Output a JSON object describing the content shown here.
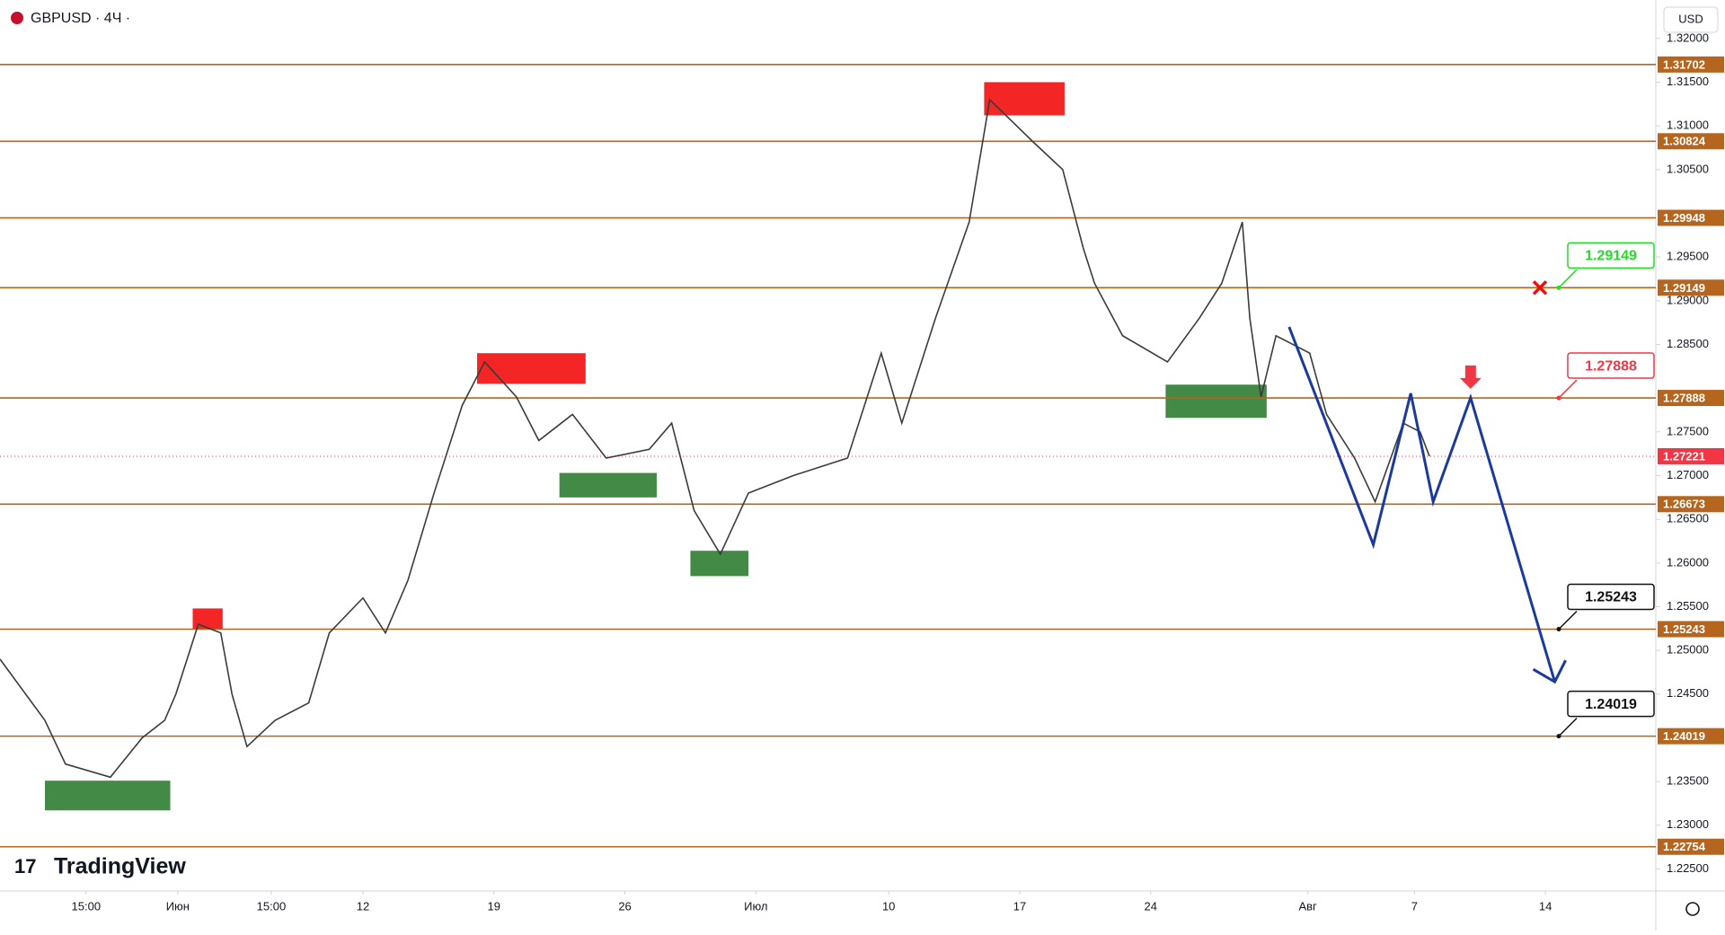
{
  "header": {
    "symbol": "GBPUSD · 4Ч ·",
    "currency": "USD",
    "brand": "TradingView"
  },
  "chart_data": {
    "type": "line",
    "color": "#3b3b3b",
    "xlim": [
      0,
      88.5
    ],
    "ylim": [
      1.22248,
      1.3244
    ],
    "xticks": [
      {
        "value": 4.6,
        "label": "15:00"
      },
      {
        "value": 9.5,
        "label": "Июн"
      },
      {
        "value": 14.5,
        "label": "15:00"
      },
      {
        "value": 19.4,
        "label": "12"
      },
      {
        "value": 26.4,
        "label": "19"
      },
      {
        "value": 33.4,
        "label": "26"
      },
      {
        "value": 40.4,
        "label": "Июл"
      },
      {
        "value": 47.5,
        "label": "10"
      },
      {
        "value": 54.5,
        "label": "17"
      },
      {
        "value": 61.5,
        "label": "24"
      },
      {
        "value": 69.9,
        "label": "Авг"
      },
      {
        "value": 75.6,
        "label": "7"
      },
      {
        "value": 82.6,
        "label": "14"
      }
    ],
    "yticks": [
      {
        "value": 1.32,
        "label": "1.32000"
      },
      {
        "value": 1.315,
        "label": "1.31500"
      },
      {
        "value": 1.31,
        "label": "1.31000"
      },
      {
        "value": 1.305,
        "label": "1.30500"
      },
      {
        "value": 1.295,
        "label": "1.29500"
      },
      {
        "value": 1.29,
        "label": "1.29000"
      },
      {
        "value": 1.285,
        "label": "1.28500"
      },
      {
        "value": 1.275,
        "label": "1.27500"
      },
      {
        "value": 1.27,
        "label": "1.27000"
      },
      {
        "value": 1.265,
        "label": "1.26500"
      },
      {
        "value": 1.26,
        "label": "1.26000"
      },
      {
        "value": 1.255,
        "label": "1.25500"
      },
      {
        "value": 1.25,
        "label": "1.25000"
      },
      {
        "value": 1.245,
        "label": "1.24500"
      },
      {
        "value": 1.235,
        "label": "1.23500"
      },
      {
        "value": 1.23,
        "label": "1.23000"
      },
      {
        "value": 1.225,
        "label": "1.22500"
      }
    ],
    "x": [
      0,
      2.4,
      3.5,
      5.9,
      7.6,
      8.8,
      9.4,
      10.6,
      11.8,
      12.4,
      13.2,
      14.7,
      16.5,
      17.6,
      19.4,
      20.6,
      21.8,
      23.2,
      24.7,
      25.9,
      27.6,
      28.8,
      30.6,
      32.4,
      34.7,
      35.9,
      37.1,
      38.5,
      40,
      42.4,
      45.3,
      47.1,
      48.2,
      50,
      51.8,
      52.9,
      55.3,
      56.8,
      57.9,
      58.5,
      60,
      62.4,
      64.1,
      65.3,
      66.4,
      66.8,
      67.4,
      68.2,
      70,
      70.9,
      72.4,
      73.5,
      75,
      75.9,
      76.4
    ],
    "values": [
      1.249,
      1.242,
      1.237,
      1.2355,
      1.24,
      1.242,
      1.245,
      1.253,
      1.252,
      1.245,
      1.239,
      1.242,
      1.244,
      1.252,
      1.256,
      1.252,
      1.258,
      1.268,
      1.278,
      1.283,
      1.279,
      1.274,
      1.277,
      1.272,
      1.273,
      1.276,
      1.266,
      1.261,
      1.268,
      1.27,
      1.272,
      1.284,
      1.276,
      1.288,
      1.299,
      1.313,
      1.308,
      1.305,
      1.296,
      1.292,
      1.286,
      1.283,
      1.288,
      1.292,
      1.299,
      1.288,
      1.279,
      1.286,
      1.284,
      1.277,
      1.272,
      1.267,
      1.276,
      1.275,
      1.27221
    ],
    "levels": [
      1.31702,
      1.30824,
      1.29948,
      1.29149,
      1.27888,
      1.26673,
      1.25243,
      1.24019,
      1.22754
    ],
    "level_color": "#b5651d",
    "current_price": 1.27221,
    "current_color": "#f23645",
    "zones": [
      {
        "x": [
          52.6,
          56.9
        ],
        "y": [
          1.3112,
          1.315
        ],
        "color": "#f20d0d"
      },
      {
        "x": [
          25.5,
          31.3
        ],
        "y": [
          1.2805,
          1.284
        ],
        "color": "#f20d0d"
      },
      {
        "x": [
          10.3,
          11.9
        ],
        "y": [
          1.2524,
          1.2548
        ],
        "color": "#f20d0d"
      },
      {
        "x": [
          2.4,
          9.1
        ],
        "y": [
          1.2317,
          1.2351
        ],
        "color": "#2e7d32"
      },
      {
        "x": [
          29.9,
          35.1
        ],
        "y": [
          1.2675,
          1.2703
        ],
        "color": "#2e7d32"
      },
      {
        "x": [
          36.9,
          40
        ],
        "y": [
          1.2585,
          1.2614
        ],
        "color": "#2e7d32"
      },
      {
        "x": [
          62.3,
          67.7
        ],
        "y": [
          1.2766,
          1.2804
        ],
        "color": "#2e7d32"
      }
    ],
    "projection": {
      "x": [
        68.9,
        73.4,
        75.4,
        76.6,
        78.6,
        83.1
      ],
      "values": [
        1.287,
        1.2621,
        1.2794,
        1.267,
        1.2789,
        1.2464
      ],
      "color": "#1a3a9c"
    },
    "callouts": [
      {
        "value": 1.29149,
        "color": "#22dd22"
      },
      {
        "value": 1.27888,
        "color": "#f23645"
      },
      {
        "value": 1.25243,
        "color": "#111111"
      },
      {
        "value": 1.24019,
        "color": "#111111"
      }
    ]
  }
}
